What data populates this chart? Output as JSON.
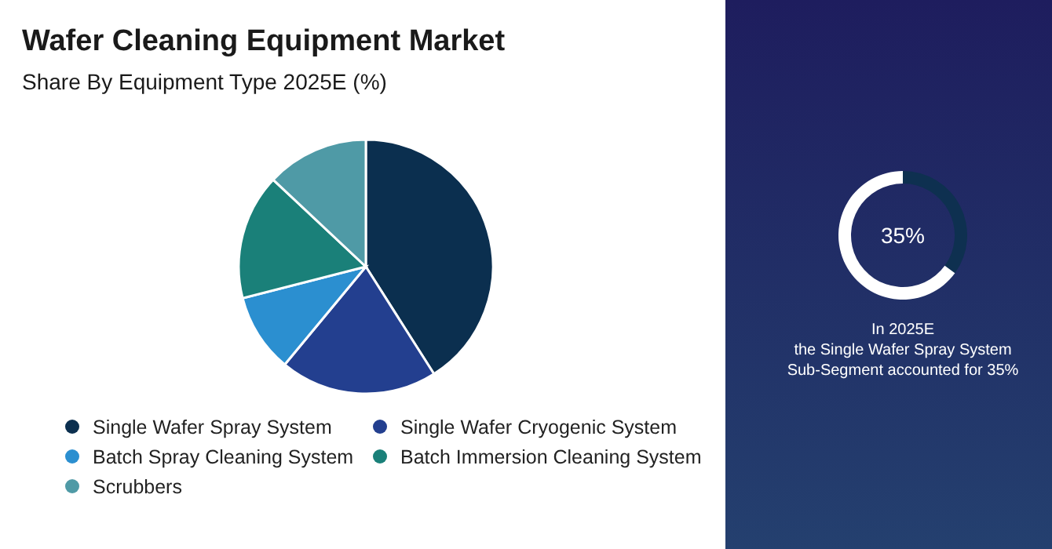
{
  "chart_data": [
    {
      "type": "pie",
      "title": "Wafer Cleaning Equipment Market",
      "subtitle": "Share By Equipment Type 2025E (%)",
      "categories": [
        "Single Wafer Spray System",
        "Single Wafer Cryogenic System",
        "Batch Spray Cleaning System",
        "Batch Immersion Cleaning System",
        "Scrubbers"
      ],
      "values": [
        41,
        20,
        10,
        16,
        13
      ],
      "colors": [
        "#0b2f4f",
        "#233f8f",
        "#2b8fd0",
        "#1a8079",
        "#4f9aa6"
      ],
      "legend": "bottom"
    },
    {
      "type": "donut",
      "categories": [
        null,
        null
      ],
      "values": [
        35,
        65
      ],
      "colors": [
        "#0e3050",
        "#ffffff"
      ],
      "value_labels": [
        "35%",
        null
      ],
      "annotations": [
        "In 2025E",
        "the Single Wafer Spray System",
        "Sub-Segment accounted for 35%"
      ]
    }
  ]
}
